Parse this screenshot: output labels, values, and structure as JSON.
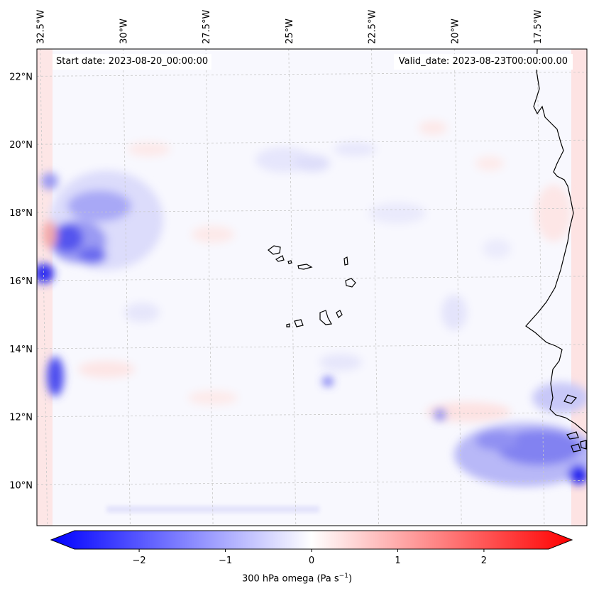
{
  "header": {
    "start_date": "Start date: 2023-08-20_00:00:00",
    "valid_date": "Valid_date: 2023-08-23T00:00:00.00"
  },
  "map": {
    "longitude_ticks": [
      "32.5°W",
      "30°W",
      "27.5°W",
      "25°W",
      "22.5°W",
      "20°W",
      "17.5°W"
    ],
    "latitude_ticks": [
      "22°N",
      "20°N",
      "18°N",
      "16°N",
      "14°N",
      "12°N",
      "10°N"
    ],
    "lon_values": [
      -32.5,
      -30,
      -27.5,
      -25,
      -22.5,
      -20,
      -17.5
    ],
    "lat_values": [
      22,
      20,
      18,
      16,
      14,
      12,
      10
    ],
    "extent": {
      "lon_min": -32.6,
      "lon_max": -16.0,
      "lat_min": 8.8,
      "lat_max": 22.8
    },
    "colors": {
      "negative": "#0000ff",
      "neutral": "#ffffff",
      "positive": "#ff0000",
      "coast": "#000000",
      "grid": "#c8c8c8"
    }
  },
  "colorbar": {
    "label": "300 hPa omega (Pa s",
    "label_sup": "−1",
    "label_end": ")",
    "min": -2.75,
    "max": 2.75,
    "ticks": [
      -2,
      -1,
      0,
      1,
      2
    ],
    "tick_labels": [
      "−2",
      "−1",
      "0",
      "1",
      "2"
    ]
  }
}
